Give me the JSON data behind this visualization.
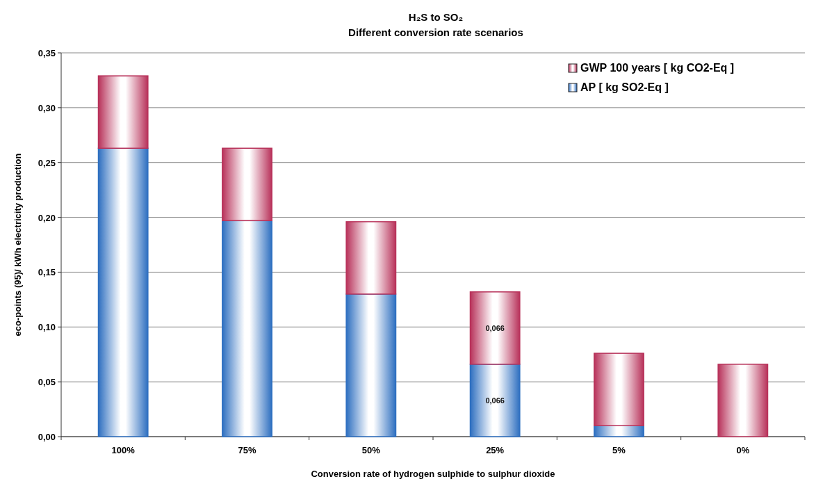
{
  "chart_data": {
    "type": "bar",
    "title": "H₂S to SO₂",
    "subtitle": "Different conversion rate scenarios",
    "xlabel": "Conversion rate of hydrogen sulphide to sulphur dioxide",
    "ylabel": "eco-points (95)/ kWh electricity production",
    "categories": [
      "100%",
      "75%",
      "50%",
      "25%",
      "5%",
      "0%"
    ],
    "series": [
      {
        "name": "AP [ kg SO2-Eq ]",
        "color": "#2e6fc0",
        "values": [
          0.263,
          0.197,
          0.13,
          0.066,
          0.01,
          0
        ],
        "value_labels": [
          null,
          null,
          null,
          "0,066",
          null,
          null
        ]
      },
      {
        "name": "GWP 100 years [ kg CO2-Eq ]",
        "color": "#b8325a",
        "values": [
          0.066,
          0.066,
          0.066,
          0.066,
          0.066,
          0.066
        ],
        "value_labels": [
          null,
          null,
          null,
          "0,066",
          null,
          null
        ]
      }
    ],
    "stacked": true,
    "ylim": [
      0,
      0.35
    ],
    "yticks": [
      {
        "value": 0,
        "label": "0,00"
      },
      {
        "value": 0.05,
        "label": "0,05"
      },
      {
        "value": 0.1,
        "label": "0,10"
      },
      {
        "value": 0.15,
        "label": "0,15"
      },
      {
        "value": 0.2,
        "label": "0,20"
      },
      {
        "value": 0.25,
        "label": "0,25"
      },
      {
        "value": 0.3,
        "label": "0,30"
      },
      {
        "value": 0.35,
        "label": "0,35"
      }
    ],
    "grid": "y",
    "legend": "top right"
  }
}
